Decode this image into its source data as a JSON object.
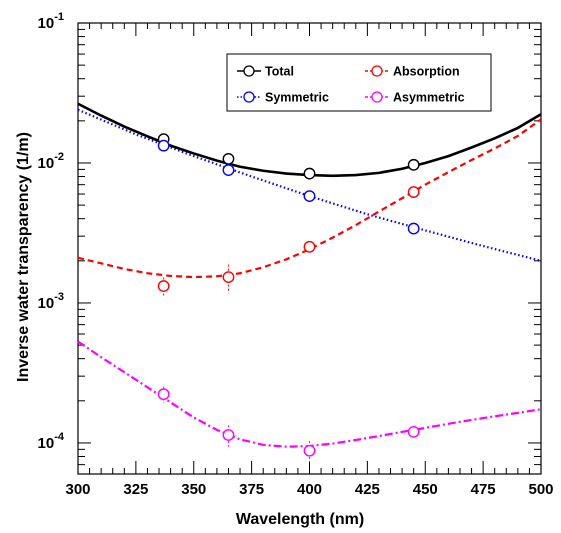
{
  "chart_data": {
    "type": "scatter",
    "title": "",
    "xlabel": "Wavelength (nm)",
    "ylabel": "Inverse water transparency (1/m)",
    "xlim": [
      300,
      500
    ],
    "ylim": [
      6e-05,
      0.1
    ],
    "y_scale": "log",
    "x_ticks": [
      300,
      325,
      350,
      375,
      400,
      425,
      450,
      475,
      500
    ],
    "x_tick_labels": [
      "300",
      "325",
      "350",
      "375",
      "400",
      "425",
      "450",
      "475",
      "500"
    ],
    "y_major_ticks": [
      0.0001,
      0.001,
      0.01,
      0.1
    ],
    "y_tick_labels": [
      {
        "base": "10",
        "exp": "-4"
      },
      {
        "base": "10",
        "exp": "-3"
      },
      {
        "base": "10",
        "exp": "-2"
      },
      {
        "base": "10",
        "exp": "-1"
      }
    ],
    "grid": false,
    "legend_position": "top-right",
    "series": [
      {
        "name": "Total",
        "color": "#000000",
        "line_style": "solid",
        "points": [
          {
            "x": 337,
            "y": 0.0148,
            "err": 0.0004
          },
          {
            "x": 365,
            "y": 0.0107,
            "err": 0.0003
          },
          {
            "x": 400,
            "y": 0.0084,
            "err": 0.0003
          },
          {
            "x": 445,
            "y": 0.0097,
            "err": 0.0003
          }
        ],
        "fit": [
          [
            300,
            0.0265
          ],
          [
            310,
            0.0218
          ],
          [
            320,
            0.0182
          ],
          [
            330,
            0.0155
          ],
          [
            340,
            0.0133
          ],
          [
            350,
            0.0117
          ],
          [
            360,
            0.0104
          ],
          [
            370,
            0.0094
          ],
          [
            380,
            0.0088
          ],
          [
            390,
            0.0084
          ],
          [
            400,
            0.0082
          ],
          [
            410,
            0.0081
          ],
          [
            420,
            0.0082
          ],
          [
            430,
            0.0085
          ],
          [
            440,
            0.0091
          ],
          [
            450,
            0.01
          ],
          [
            460,
            0.0112
          ],
          [
            470,
            0.0129
          ],
          [
            480,
            0.015
          ],
          [
            490,
            0.0178
          ],
          [
            500,
            0.0223
          ]
        ]
      },
      {
        "name": "Absorption",
        "color": "#ff0000",
        "line_style": "dashed",
        "points": [
          {
            "x": 337,
            "y": 0.00132,
            "err": 0.0002
          },
          {
            "x": 365,
            "y": 0.00153,
            "err": 0.00035
          },
          {
            "x": 400,
            "y": 0.00252,
            "err": 0.0002
          },
          {
            "x": 445,
            "y": 0.0062,
            "err": 0.0003
          }
        ],
        "fit": [
          [
            300,
            0.0021
          ],
          [
            310,
            0.00192
          ],
          [
            320,
            0.00175
          ],
          [
            330,
            0.00163
          ],
          [
            340,
            0.00156
          ],
          [
            350,
            0.00153
          ],
          [
            360,
            0.00155
          ],
          [
            370,
            0.00163
          ],
          [
            380,
            0.0018
          ],
          [
            390,
            0.00205
          ],
          [
            400,
            0.00242
          ],
          [
            410,
            0.00293
          ],
          [
            420,
            0.0036
          ],
          [
            430,
            0.0045
          ],
          [
            440,
            0.0056
          ],
          [
            450,
            0.007
          ],
          [
            460,
            0.0086
          ],
          [
            470,
            0.0105
          ],
          [
            480,
            0.0127
          ],
          [
            490,
            0.0156
          ],
          [
            500,
            0.0205
          ]
        ]
      },
      {
        "name": "Symmetric",
        "color": "#0000ff",
        "line_style": "dotted",
        "points": [
          {
            "x": 337,
            "y": 0.0133,
            "err": 0.0004
          },
          {
            "x": 365,
            "y": 0.0089,
            "err": 0.0003
          },
          {
            "x": 400,
            "y": 0.0058,
            "err": 0.0002
          },
          {
            "x": 445,
            "y": 0.0034,
            "err": 0.0001
          }
        ],
        "fit": [
          [
            300,
            0.024
          ],
          [
            325,
            0.016
          ],
          [
            350,
            0.0112
          ],
          [
            375,
            0.008
          ],
          [
            400,
            0.0058
          ],
          [
            425,
            0.0043
          ],
          [
            450,
            0.0033
          ],
          [
            475,
            0.00255
          ],
          [
            500,
            0.002
          ]
        ]
      },
      {
        "name": "Asymmetric",
        "color": "#ff00ff",
        "line_style": "dash-dot",
        "points": [
          {
            "x": 337,
            "y": 0.000223,
            "err": 3e-05
          },
          {
            "x": 365,
            "y": 0.000114,
            "err": 2e-05
          },
          {
            "x": 400,
            "y": 8.8e-05,
            "err": 1.5e-05
          },
          {
            "x": 445,
            "y": 0.00012,
            "err": 1e-05
          }
        ],
        "fit": [
          [
            300,
            0.00053
          ],
          [
            310,
            0.00041
          ],
          [
            320,
            0.00032
          ],
          [
            330,
            0.00025
          ],
          [
            340,
            0.000195
          ],
          [
            350,
            0.000152
          ],
          [
            360,
            0.000124
          ],
          [
            370,
            0.000106
          ],
          [
            380,
            9.7e-05
          ],
          [
            390,
            9.4e-05
          ],
          [
            400,
            9.5e-05
          ],
          [
            410,
            9.9e-05
          ],
          [
            420,
            0.000105
          ],
          [
            430,
            0.000112
          ],
          [
            440,
            0.00012
          ],
          [
            450,
            0.000128
          ],
          [
            460,
            0.000137
          ],
          [
            470,
            0.000146
          ],
          [
            480,
            0.000155
          ],
          [
            490,
            0.000164
          ],
          [
            500,
            0.000174
          ]
        ]
      }
    ],
    "legend_layout": [
      [
        "Total",
        "Absorption"
      ],
      [
        "Symmetric",
        "Asymmetric"
      ]
    ]
  }
}
